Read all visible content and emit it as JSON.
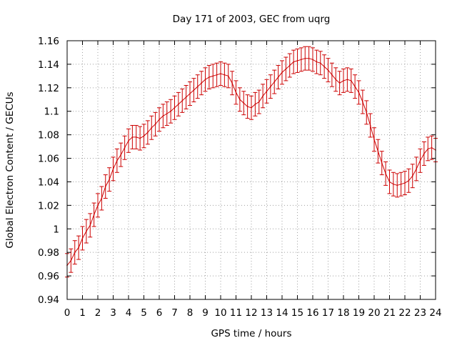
{
  "chart_data": {
    "type": "line",
    "title": "Day 171 of 2003, GEC from uqrg",
    "xlabel": "GPS time / hours",
    "ylabel": "Global Electron Content / GECUs",
    "xlim": [
      0,
      24
    ],
    "ylim": [
      0.94,
      1.16
    ],
    "xticks": [
      0,
      1,
      2,
      3,
      4,
      5,
      6,
      7,
      8,
      9,
      10,
      11,
      12,
      13,
      14,
      15,
      16,
      17,
      18,
      19,
      20,
      21,
      22,
      23,
      24
    ],
    "yticks": [
      0.94,
      0.96,
      0.98,
      1,
      1.02,
      1.04,
      1.06,
      1.08,
      1.1,
      1.12,
      1.14,
      1.16
    ],
    "ytick_labels": [
      "0.94",
      "0.96",
      "0.98",
      "1",
      "1.02",
      "1.04",
      "1.06",
      "1.08",
      "1.1",
      "1.12",
      "1.14",
      "1.16"
    ],
    "grid": true,
    "error_bar": 0.01,
    "series": [
      {
        "name": "GEC",
        "color": "#cc0000",
        "x": [
          0,
          0.25,
          0.5,
          0.75,
          1,
          1.25,
          1.5,
          1.75,
          2,
          2.25,
          2.5,
          2.75,
          3,
          3.25,
          3.5,
          3.75,
          4,
          4.25,
          4.5,
          4.75,
          5,
          5.25,
          5.5,
          5.75,
          6,
          6.25,
          6.5,
          6.75,
          7,
          7.25,
          7.5,
          7.75,
          8,
          8.25,
          8.5,
          8.75,
          9,
          9.25,
          9.5,
          9.75,
          10,
          10.25,
          10.5,
          10.75,
          11,
          11.25,
          11.5,
          11.75,
          12,
          12.25,
          12.5,
          12.75,
          13,
          13.25,
          13.5,
          13.75,
          14,
          14.25,
          14.5,
          14.75,
          15,
          15.25,
          15.5,
          15.75,
          16,
          16.25,
          16.5,
          16.75,
          17,
          17.25,
          17.5,
          17.75,
          18,
          18.25,
          18.5,
          18.75,
          19,
          19.25,
          19.5,
          19.75,
          20,
          20.25,
          20.5,
          20.75,
          21,
          21.25,
          21.5,
          21.75,
          22,
          22.25,
          22.5,
          22.75,
          23,
          23.25,
          23.5,
          23.75,
          24
        ],
        "y": [
          0.969,
          0.973,
          0.98,
          0.984,
          0.992,
          0.998,
          1.003,
          1.012,
          1.02,
          1.026,
          1.036,
          1.042,
          1.051,
          1.058,
          1.063,
          1.069,
          1.075,
          1.078,
          1.078,
          1.077,
          1.079,
          1.082,
          1.086,
          1.089,
          1.093,
          1.096,
          1.098,
          1.1,
          1.103,
          1.106,
          1.109,
          1.112,
          1.115,
          1.118,
          1.121,
          1.124,
          1.127,
          1.129,
          1.13,
          1.131,
          1.132,
          1.131,
          1.13,
          1.124,
          1.116,
          1.11,
          1.107,
          1.104,
          1.103,
          1.106,
          1.108,
          1.113,
          1.117,
          1.121,
          1.125,
          1.129,
          1.133,
          1.136,
          1.139,
          1.142,
          1.143,
          1.144,
          1.145,
          1.145,
          1.144,
          1.142,
          1.141,
          1.138,
          1.135,
          1.131,
          1.127,
          1.124,
          1.126,
          1.127,
          1.126,
          1.121,
          1.116,
          1.108,
          1.099,
          1.088,
          1.076,
          1.066,
          1.056,
          1.047,
          1.04,
          1.038,
          1.037,
          1.038,
          1.039,
          1.041,
          1.045,
          1.051,
          1.058,
          1.064,
          1.068,
          1.069,
          1.067
        ]
      }
    ]
  }
}
